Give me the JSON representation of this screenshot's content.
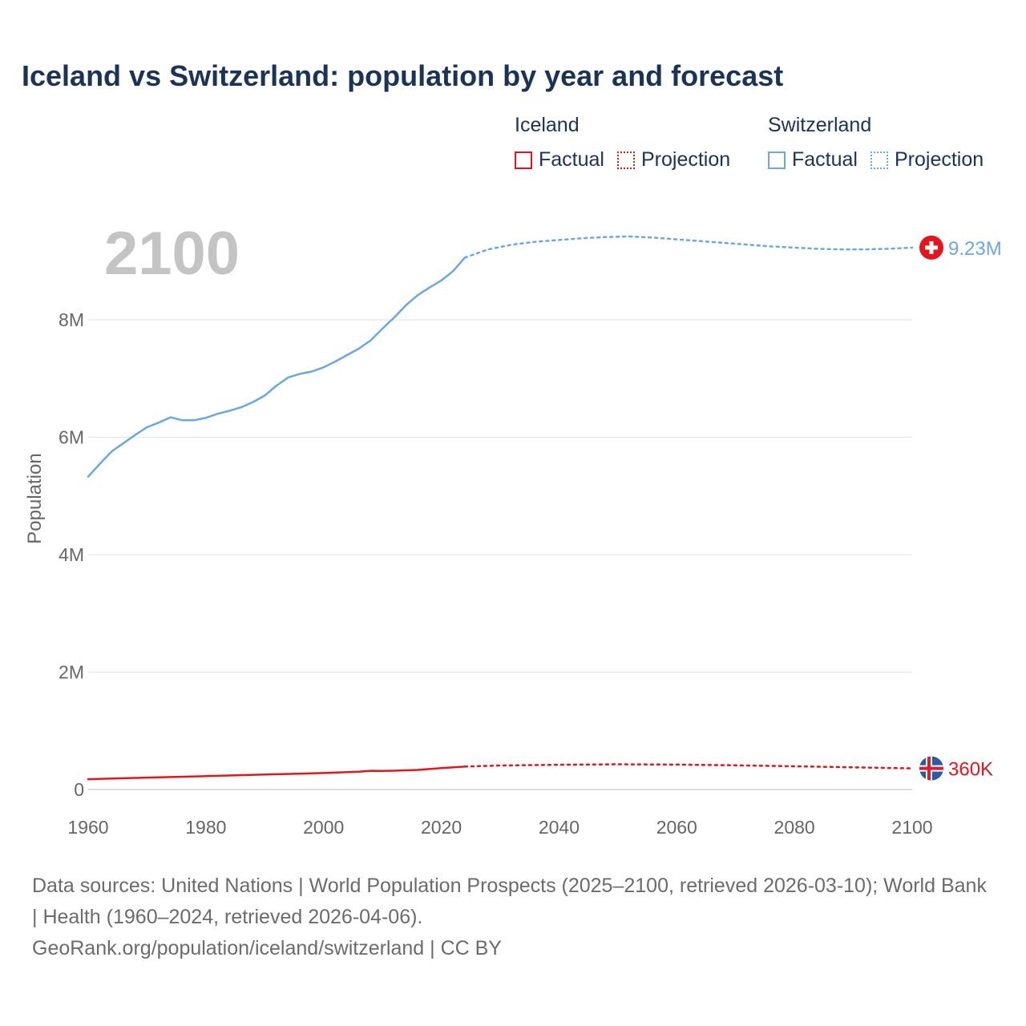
{
  "title": "Iceland vs Switzerland: population by year and forecast",
  "legend": {
    "iceland": {
      "name": "Iceland",
      "factual": "Factual",
      "projection": "Projection",
      "color": "#e8141c"
    },
    "switzerland": {
      "name": "Switzerland",
      "factual": "Factual",
      "projection": "Projection",
      "color": "#6aa8e3"
    }
  },
  "current_year": "2100",
  "footer": {
    "sources": "Data sources: United Nations | World Population Prospects (2025–2100, retrieved 2026-03-10); World Bank | Health (1960–2024, retrieved 2026-04-06).",
    "credit": "GeoRank.org/population/iceland/switzerland | CC BY"
  },
  "chart_data": {
    "type": "line",
    "title": "Iceland vs Switzerland: population by year and forecast",
    "xlabel": "",
    "ylabel": "Population",
    "xlim": [
      1960,
      2100
    ],
    "ylim": [
      0,
      9500000
    ],
    "x_ticks": [
      1960,
      1980,
      2000,
      2020,
      2040,
      2060,
      2080,
      2100
    ],
    "y_ticks": [
      {
        "value": 0,
        "label": "0"
      },
      {
        "value": 2000000,
        "label": "2M"
      },
      {
        "value": 4000000,
        "label": "4M"
      },
      {
        "value": 6000000,
        "label": "6M"
      },
      {
        "value": 8000000,
        "label": "8M"
      }
    ],
    "series": [
      {
        "name": "Switzerland",
        "color": "#6aa8e3",
        "end_label": "9.23M",
        "factual": {
          "x": [
            1960,
            1962,
            1964,
            1966,
            1968,
            1970,
            1972,
            1974,
            1976,
            1978,
            1980,
            1982,
            1984,
            1986,
            1988,
            1990,
            1992,
            1994,
            1996,
            1998,
            2000,
            2002,
            2004,
            2006,
            2008,
            2010,
            2012,
            2014,
            2016,
            2018,
            2020,
            2022,
            2024
          ],
          "y": [
            5330000,
            5550000,
            5760000,
            5900000,
            6040000,
            6170000,
            6250000,
            6340000,
            6290000,
            6290000,
            6330000,
            6400000,
            6450000,
            6510000,
            6600000,
            6710000,
            6880000,
            7020000,
            7080000,
            7120000,
            7190000,
            7290000,
            7400000,
            7510000,
            7650000,
            7850000,
            8040000,
            8250000,
            8420000,
            8550000,
            8670000,
            8830000,
            9060000
          ]
        },
        "projection": {
          "x": [
            2024,
            2028,
            2032,
            2036,
            2040,
            2044,
            2048,
            2052,
            2056,
            2060,
            2064,
            2068,
            2072,
            2076,
            2080,
            2084,
            2088,
            2092,
            2096,
            2100
          ],
          "y": [
            9060000,
            9200000,
            9280000,
            9330000,
            9360000,
            9390000,
            9410000,
            9420000,
            9400000,
            9370000,
            9340000,
            9310000,
            9280000,
            9250000,
            9230000,
            9210000,
            9200000,
            9200000,
            9210000,
            9230000
          ]
        }
      },
      {
        "name": "Iceland",
        "color": "#e8141c",
        "end_label": "360K",
        "factual": {
          "x": [
            1960,
            1970,
            1980,
            1990,
            2000,
            2006,
            2008,
            2010,
            2012,
            2016,
            2020,
            2024
          ],
          "y": [
            176000,
            204000,
            228000,
            255000,
            281000,
            304000,
            320000,
            318000,
            321000,
            335000,
            366000,
            390000
          ]
        },
        "projection": {
          "x": [
            2024,
            2030,
            2040,
            2050,
            2060,
            2070,
            2080,
            2090,
            2100
          ],
          "y": [
            390000,
            410000,
            422000,
            430000,
            425000,
            412000,
            396000,
            378000,
            360000
          ]
        }
      }
    ]
  }
}
